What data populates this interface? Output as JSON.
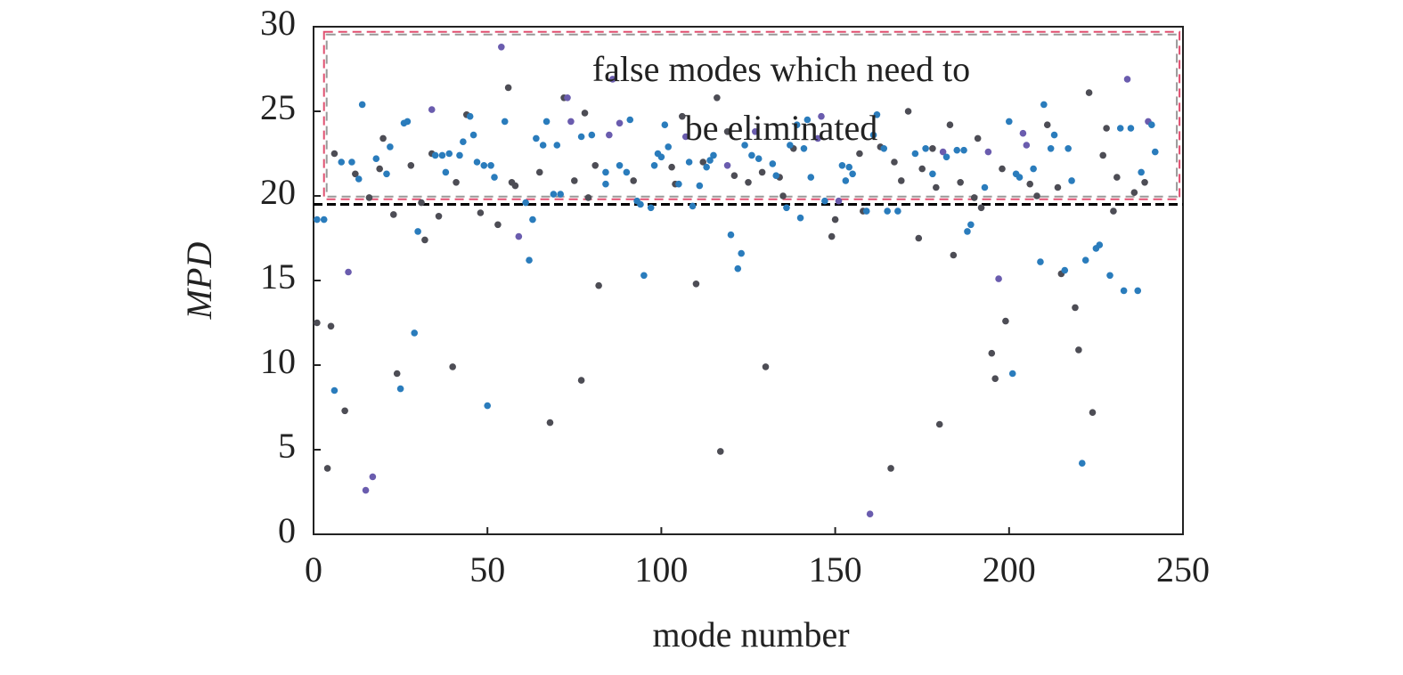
{
  "chart_data": {
    "type": "scatter",
    "xlabel": "mode number",
    "ylabel": "MPD",
    "xlim": [
      0,
      250
    ],
    "xticks": [
      0,
      50,
      100,
      150,
      200,
      250
    ],
    "ylim": [
      0,
      30
    ],
    "yticks": [
      0,
      5,
      10,
      15,
      20,
      25,
      30
    ],
    "threshold": 19.5,
    "threshold_color": "#000000",
    "annotation_box": {
      "x": [
        3,
        249
      ],
      "y": [
        19.8,
        29.7
      ],
      "color": "#e05070"
    },
    "annotation": [
      "false modes which need to",
      "be eliminated"
    ],
    "series": [
      {
        "color": "#4d4d55",
        "x": [
          1,
          4,
          5,
          6,
          9,
          12,
          16,
          19,
          20,
          23,
          24,
          28,
          31,
          32,
          34,
          36,
          40,
          41,
          44,
          48,
          53,
          56,
          57,
          58,
          65,
          68,
          72,
          75,
          77,
          78,
          79,
          81,
          82,
          92,
          103,
          104,
          106,
          110,
          112,
          116,
          117,
          119,
          121,
          125,
          129,
          130,
          134,
          135,
          138,
          149,
          150,
          157,
          158,
          163,
          166,
          167,
          169,
          171,
          174,
          175,
          178,
          179,
          180,
          183,
          184,
          186,
          190,
          191,
          192,
          195,
          196,
          198,
          199,
          206,
          208,
          211,
          214,
          215,
          219,
          220,
          223,
          224,
          227,
          228,
          230,
          231,
          236,
          239
        ],
        "values": [
          12.5,
          3.9,
          12.3,
          22.5,
          7.3,
          21.3,
          19.9,
          21.6,
          23.4,
          18.9,
          9.5,
          21.8,
          19.6,
          17.4,
          22.5,
          18.8,
          9.9,
          20.8,
          24.8,
          19,
          18.3,
          26.4,
          20.8,
          20.6,
          21.4,
          6.6,
          25.8,
          20.9,
          9.1,
          24.9,
          19.9,
          21.8,
          14.7,
          20.9,
          21.7,
          20.7,
          24.7,
          14.8,
          22,
          25.8,
          4.9,
          23.8,
          21.2,
          20.8,
          21.4,
          9.9,
          21.1,
          20,
          22.8,
          17.6,
          18.6,
          22.5,
          19.1,
          22.9,
          3.9,
          22,
          20.9,
          25,
          17.5,
          21.6,
          22.8,
          20.5,
          6.5,
          24.2,
          16.5,
          20.8,
          19.9,
          23.4,
          19.3,
          10.7,
          9.2,
          21.6,
          12.6,
          20.7,
          20,
          24.2,
          20.5,
          15.4,
          13.4,
          10.9,
          26.1,
          7.2,
          22.4,
          24,
          19.1,
          21.1,
          20.2,
          20.8
        ]
      },
      {
        "color": "#6a5cae",
        "x": [
          10,
          15,
          17,
          34,
          54,
          59,
          73,
          74,
          85,
          86,
          88,
          107,
          119,
          127,
          145,
          146,
          151,
          160,
          181,
          194,
          197,
          204,
          205,
          234,
          240
        ],
        "values": [
          15.5,
          2.6,
          3.4,
          25.1,
          28.8,
          17.6,
          25.8,
          24.4,
          23.6,
          26.9,
          24.3,
          23.5,
          21.8,
          23.8,
          23.4,
          24.7,
          19.7,
          1.2,
          22.6,
          22.6,
          15.1,
          23.7,
          23,
          26.9,
          24.4
        ]
      },
      {
        "color": "#2a7cbc",
        "x": [
          1,
          3,
          6,
          8,
          11,
          13,
          14,
          18,
          21,
          22,
          25,
          26,
          27,
          29,
          30,
          35,
          37,
          38,
          39,
          42,
          43,
          45,
          46,
          47,
          49,
          50,
          51,
          52,
          55,
          61,
          62,
          63,
          64,
          66,
          67,
          69,
          70,
          71,
          77,
          80,
          84,
          84,
          88,
          90,
          91,
          93,
          94,
          95,
          97,
          98,
          99,
          100,
          101,
          102,
          105,
          108,
          109,
          111,
          113,
          114,
          115,
          120,
          122,
          123,
          124,
          126,
          128,
          132,
          133,
          136,
          137,
          139,
          140,
          141,
          142,
          143,
          147,
          152,
          153,
          154,
          155,
          159,
          161,
          162,
          164,
          165,
          168,
          173,
          176,
          178,
          182,
          185,
          187,
          188,
          189,
          193,
          200,
          201,
          202,
          203,
          207,
          209,
          210,
          212,
          213,
          216,
          217,
          218,
          221,
          222,
          225,
          226,
          229,
          232,
          233,
          235,
          237,
          238,
          241,
          242
        ],
        "values": [
          18.6,
          18.6,
          8.5,
          22,
          22,
          21,
          25.4,
          22.2,
          21.3,
          22.9,
          8.6,
          24.3,
          24.4,
          11.9,
          17.9,
          22.4,
          22.4,
          21.4,
          22.5,
          22.4,
          23.2,
          24.7,
          23.6,
          22,
          21.8,
          7.6,
          21.8,
          21.1,
          24.4,
          19.6,
          16.2,
          18.6,
          23.4,
          23,
          24.4,
          20.1,
          23,
          20.1,
          23.5,
          23.6,
          20.7,
          21.4,
          21.8,
          21.4,
          24.5,
          19.7,
          19.5,
          15.3,
          19.3,
          21.8,
          22.5,
          22.3,
          24.2,
          22.9,
          20.7,
          22,
          19.4,
          20.6,
          21.7,
          22.1,
          22.4,
          17.7,
          15.7,
          16.6,
          23,
          22.4,
          22.2,
          21.9,
          21.2,
          19.3,
          23,
          24.2,
          18.7,
          22.8,
          24.5,
          21.1,
          19.7,
          21.8,
          20.9,
          21.7,
          21.3,
          19.1,
          23.6,
          24.8,
          22.8,
          19.1,
          19.1,
          22.5,
          22.8,
          21.3,
          22.3,
          22.7,
          22.7,
          17.9,
          18.3,
          20.5,
          24.4,
          9.5,
          21.3,
          21.1,
          21.6,
          16.1,
          25.4,
          22.8,
          23.6,
          15.6,
          22.8,
          20.9,
          4.2,
          16.2,
          16.9,
          17.1,
          15.3,
          24,
          14.4,
          24,
          14.4,
          21.4,
          24.2,
          22.6
        ]
      }
    ]
  }
}
